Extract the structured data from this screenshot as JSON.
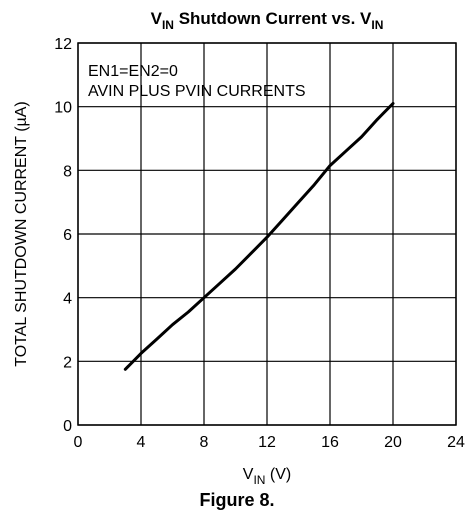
{
  "chart_data": {
    "type": "line",
    "title": {
      "prefix": "V",
      "prefix_sub": "IN",
      "middle": " Shutdown Current vs. V",
      "suffix_sub": "IN"
    },
    "xlabel": {
      "main": "V",
      "sub": "IN",
      "tail": " (V)"
    },
    "ylabel": "TOTAL SHUTDOWN CURRENT (µA)",
    "xlim": [
      0,
      24
    ],
    "ylim": [
      0,
      12
    ],
    "x_ticks": [
      0,
      4,
      8,
      12,
      16,
      20,
      24
    ],
    "y_ticks": [
      0,
      2,
      4,
      6,
      8,
      10,
      12
    ],
    "grid": true,
    "annotations": [
      "EN1=EN2=0",
      "AVIN PLUS PVIN CURRENTS"
    ],
    "series": [
      {
        "x": [
          3,
          4,
          5,
          6,
          7,
          8,
          9,
          10,
          11,
          12,
          13,
          14,
          15,
          16,
          17,
          18,
          19,
          20
        ],
        "y": [
          1.75,
          2.25,
          2.7,
          3.15,
          3.55,
          4.0,
          4.45,
          4.9,
          5.4,
          5.9,
          6.45,
          7.0,
          7.55,
          8.15,
          8.6,
          9.05,
          9.6,
          10.1
        ]
      }
    ],
    "line_color": "#000000"
  },
  "caption": "Figure 8."
}
